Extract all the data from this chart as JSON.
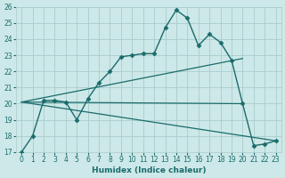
{
  "xlabel": "Humidex (Indice chaleur)",
  "xlim": [
    -0.5,
    23.5
  ],
  "ylim": [
    17,
    26
  ],
  "xticks": [
    0,
    1,
    2,
    3,
    4,
    5,
    6,
    7,
    8,
    9,
    10,
    11,
    12,
    13,
    14,
    15,
    16,
    17,
    18,
    19,
    20,
    21,
    22,
    23
  ],
  "yticks": [
    17,
    18,
    19,
    20,
    21,
    22,
    23,
    24,
    25,
    26
  ],
  "bg_color": "#cde8e8",
  "grid_color": "#a8cccc",
  "line_color": "#1a6b6b",
  "lines": [
    {
      "x": [
        0,
        1,
        2,
        3,
        4,
        5,
        6,
        7,
        8,
        9,
        10,
        11,
        12,
        13,
        14,
        15,
        16,
        17,
        18,
        19,
        20,
        21,
        22,
        23
      ],
      "y": [
        17.0,
        18.0,
        20.2,
        20.2,
        20.1,
        19.0,
        20.3,
        21.3,
        22.0,
        22.9,
        23.0,
        23.1,
        23.1,
        24.7,
        25.8,
        25.3,
        23.6,
        24.3,
        23.8,
        22.7,
        20.0,
        17.4,
        17.5,
        17.7
      ],
      "marker": "D",
      "markersize": 2.5,
      "linewidth": 1.0
    },
    {
      "x": [
        0,
        20
      ],
      "y": [
        20.1,
        22.8
      ],
      "marker": null,
      "markersize": 0,
      "linewidth": 0.9
    },
    {
      "x": [
        0,
        20
      ],
      "y": [
        20.1,
        20.0
      ],
      "marker": null,
      "markersize": 0,
      "linewidth": 0.9
    },
    {
      "x": [
        0,
        23
      ],
      "y": [
        20.1,
        17.7
      ],
      "marker": null,
      "markersize": 0,
      "linewidth": 0.9
    }
  ]
}
